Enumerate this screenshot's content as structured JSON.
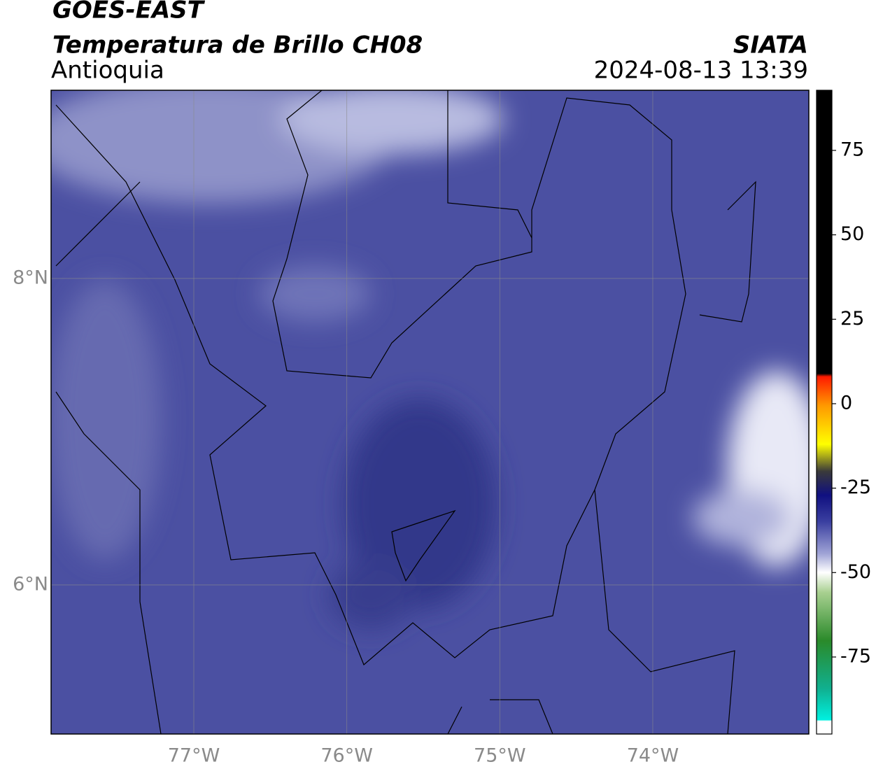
{
  "header": {
    "title": "GOES-EAST",
    "subtitle": "Temperatura de Brillo CH08",
    "region": "Antioquia",
    "source": "SIATA",
    "datetime": "2024-08-13 13:39"
  },
  "map": {
    "lonlim": [
      -77.933,
      -72.98
    ],
    "latlim": [
      5.027,
      9.228
    ],
    "lonticks": [
      {
        "value": -77,
        "label": "77°W"
      },
      {
        "value": -76,
        "label": "76°W"
      },
      {
        "value": -75,
        "label": "75°W"
      },
      {
        "value": -74,
        "label": "74°W"
      }
    ],
    "latticks": [
      {
        "value": 6,
        "label": "6°N"
      },
      {
        "value": 8,
        "label": "8°N"
      }
    ],
    "grid": true
  },
  "colorbar": {
    "lim": [
      -97.8,
      92.8
    ],
    "ticks": [
      -75,
      -50,
      -25,
      0,
      25,
      50,
      75
    ]
  }
}
